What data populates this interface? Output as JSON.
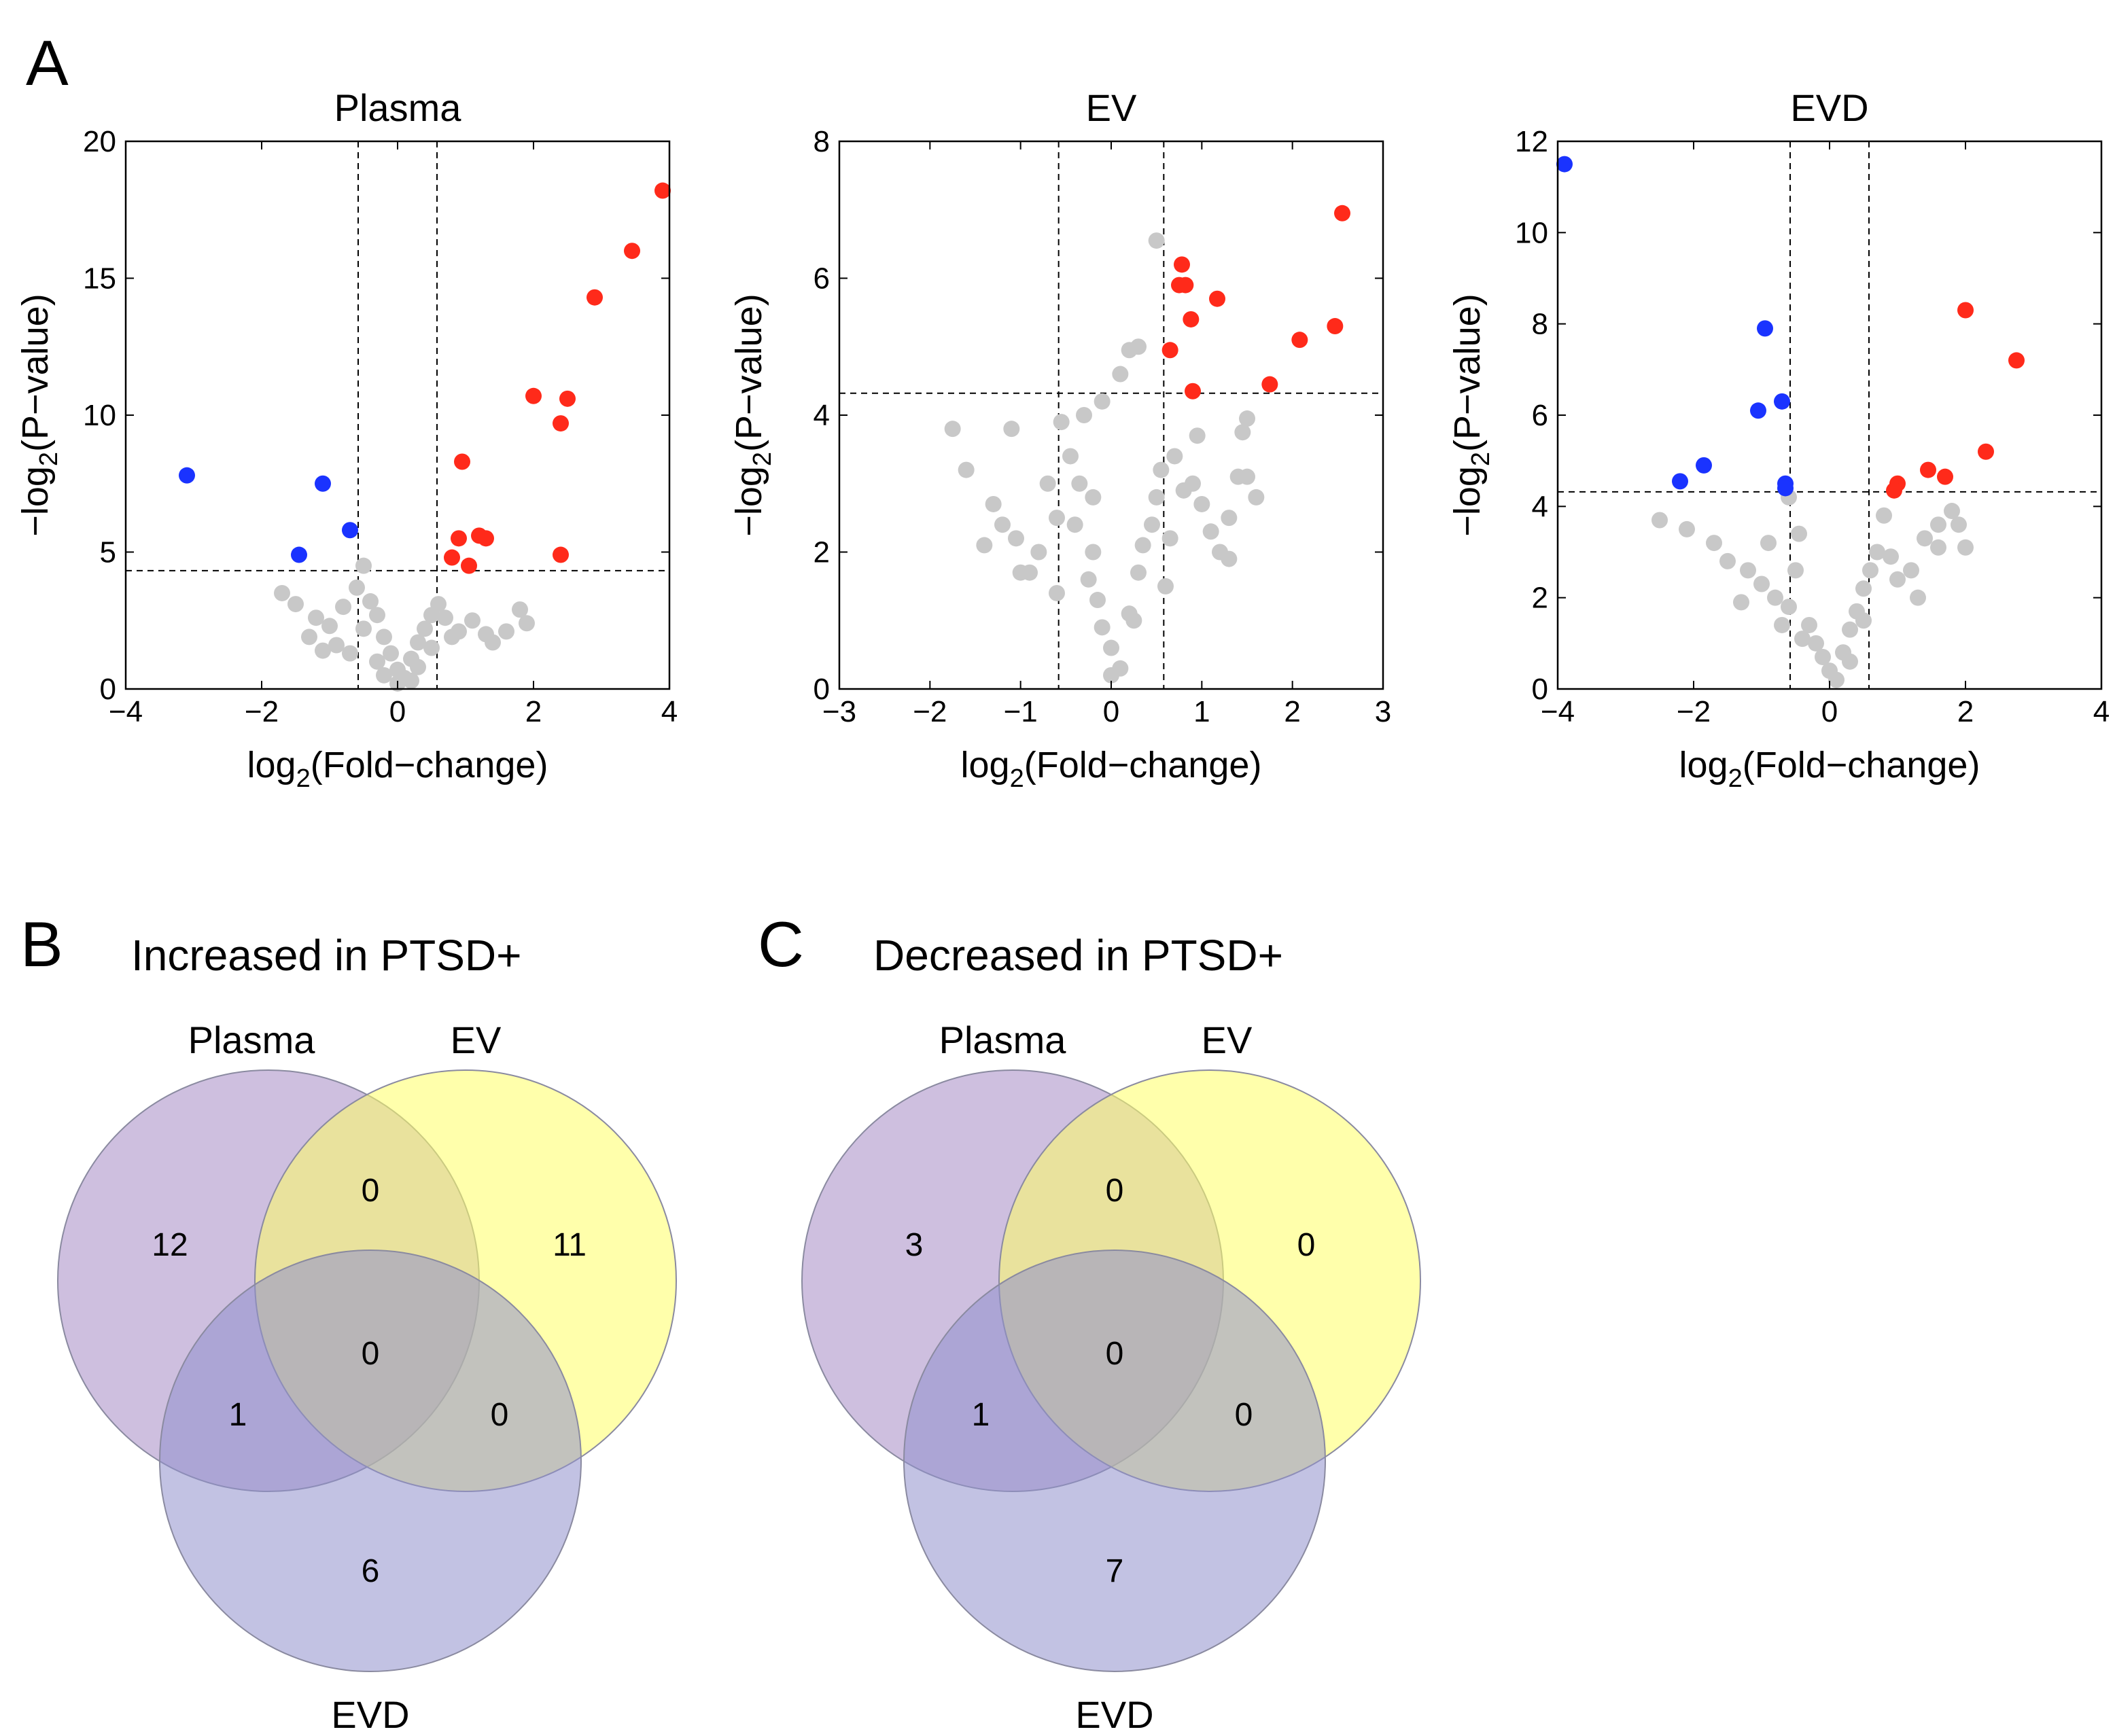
{
  "colors": {
    "up": "#ff2a1a",
    "down": "#1a33ff",
    "ns": "#c8c8c8",
    "plasma_set": "#a68bc4",
    "ev_set": "#ffff66",
    "evd_set": "#8f8fcc"
  },
  "labels": {
    "panel_a": "A",
    "panel_b": "B",
    "panel_c": "C",
    "xlabel_main": "log",
    "xlabel_sub": "2",
    "xlabel_tail": "(Fold−change)",
    "ylabel_main": "−log",
    "ylabel_sub": "2",
    "ylabel_tail": "(P−value)"
  },
  "chart_data": [
    {
      "type": "scatter",
      "title": "Plasma",
      "xlabel": "log2(Fold−change)",
      "ylabel": "−log2(P−value)",
      "xlim": [
        -4,
        4
      ],
      "ylim": [
        0,
        20
      ],
      "xticks": [
        -4,
        -2,
        0,
        2,
        4
      ],
      "yticks": [
        0,
        5,
        10,
        15,
        20
      ],
      "thresholds": {
        "x": [
          -0.58,
          0.58
        ],
        "y": 4.32
      },
      "up": [
        [
          3.9,
          18.2
        ],
        [
          3.45,
          16.0
        ],
        [
          2.9,
          14.3
        ],
        [
          2.0,
          10.7
        ],
        [
          2.5,
          10.6
        ],
        [
          2.4,
          9.7
        ],
        [
          0.95,
          8.3
        ],
        [
          0.9,
          5.5
        ],
        [
          1.2,
          5.6
        ],
        [
          1.3,
          5.5
        ],
        [
          0.8,
          4.8
        ],
        [
          1.05,
          4.5
        ],
        [
          2.4,
          4.9
        ]
      ],
      "down": [
        [
          -3.1,
          7.8
        ],
        [
          -1.1,
          7.5
        ],
        [
          -0.7,
          5.8
        ],
        [
          -1.45,
          4.9
        ]
      ],
      "ns": [
        [
          -1.7,
          3.5
        ],
        [
          -1.5,
          3.1
        ],
        [
          -1.2,
          2.6
        ],
        [
          -1.0,
          2.3
        ],
        [
          -0.8,
          3.0
        ],
        [
          -0.5,
          4.5
        ],
        [
          -0.6,
          3.7
        ],
        [
          -0.4,
          3.2
        ],
        [
          -0.3,
          2.7
        ],
        [
          -0.5,
          2.2
        ],
        [
          -0.2,
          1.9
        ],
        [
          -0.1,
          1.3
        ],
        [
          0.0,
          0.7
        ],
        [
          0.1,
          0.4
        ],
        [
          0.0,
          0.2
        ],
        [
          0.2,
          1.1
        ],
        [
          0.3,
          1.7
        ],
        [
          0.4,
          2.2
        ],
        [
          0.5,
          2.7
        ],
        [
          0.6,
          3.1
        ],
        [
          0.7,
          2.6
        ],
        [
          0.9,
          2.1
        ],
        [
          1.1,
          2.5
        ],
        [
          1.3,
          2.0
        ],
        [
          1.4,
          1.7
        ],
        [
          1.6,
          2.1
        ],
        [
          1.8,
          2.9
        ],
        [
          1.9,
          2.4
        ],
        [
          -0.9,
          1.6
        ],
        [
          -1.3,
          1.9
        ],
        [
          -0.3,
          1.0
        ],
        [
          0.3,
          0.8
        ],
        [
          -0.2,
          0.5
        ],
        [
          0.5,
          1.5
        ],
        [
          -0.7,
          1.3
        ],
        [
          0.8,
          1.9
        ],
        [
          -1.1,
          1.4
        ],
        [
          0.2,
          0.3
        ]
      ]
    },
    {
      "type": "scatter",
      "title": "EV",
      "xlabel": "log2(Fold−change)",
      "ylabel": "−log2(P−value)",
      "xlim": [
        -3,
        3
      ],
      "ylim": [
        0,
        8
      ],
      "xticks": [
        -3,
        -2,
        -1,
        0,
        1,
        2,
        3
      ],
      "yticks": [
        0,
        2,
        4,
        6,
        8
      ],
      "thresholds": {
        "x": [
          -0.58,
          0.58
        ],
        "y": 4.32
      },
      "up": [
        [
          2.55,
          6.95
        ],
        [
          0.78,
          6.2
        ],
        [
          0.75,
          5.9
        ],
        [
          0.82,
          5.9
        ],
        [
          1.17,
          5.7
        ],
        [
          0.88,
          5.4
        ],
        [
          2.47,
          5.3
        ],
        [
          2.08,
          5.1
        ],
        [
          0.65,
          4.95
        ],
        [
          1.75,
          4.45
        ],
        [
          0.9,
          4.35
        ]
      ],
      "down": [],
      "ns": [
        [
          0.5,
          6.55
        ],
        [
          0.3,
          5.0
        ],
        [
          0.1,
          4.6
        ],
        [
          -0.1,
          4.2
        ],
        [
          -0.3,
          4.0
        ],
        [
          -0.55,
          3.9
        ],
        [
          -1.75,
          3.8
        ],
        [
          -1.1,
          3.8
        ],
        [
          -1.6,
          3.2
        ],
        [
          -1.3,
          2.7
        ],
        [
          -1.2,
          2.4
        ],
        [
          -1.05,
          2.2
        ],
        [
          -0.8,
          2.0
        ],
        [
          -0.6,
          2.5
        ],
        [
          -0.7,
          3.0
        ],
        [
          -0.9,
          1.7
        ],
        [
          -0.4,
          2.4
        ],
        [
          -0.35,
          3.0
        ],
        [
          -0.45,
          3.4
        ],
        [
          -0.2,
          2.0
        ],
        [
          -0.25,
          1.6
        ],
        [
          -0.15,
          1.3
        ],
        [
          -0.1,
          0.9
        ],
        [
          0.0,
          0.6
        ],
        [
          0.1,
          0.3
        ],
        [
          0.0,
          0.2
        ],
        [
          0.2,
          1.1
        ],
        [
          0.3,
          1.7
        ],
        [
          0.35,
          2.1
        ],
        [
          0.5,
          2.8
        ],
        [
          0.55,
          3.2
        ],
        [
          0.7,
          3.4
        ],
        [
          0.8,
          2.9
        ],
        [
          0.9,
          3.0
        ],
        [
          1.0,
          2.7
        ],
        [
          1.1,
          2.3
        ],
        [
          1.2,
          2.0
        ],
        [
          1.3,
          2.5
        ],
        [
          1.4,
          3.1
        ],
        [
          1.5,
          3.1
        ],
        [
          1.6,
          2.8
        ],
        [
          1.3,
          1.9
        ],
        [
          0.65,
          2.2
        ],
        [
          0.45,
          2.4
        ],
        [
          0.6,
          1.5
        ],
        [
          0.25,
          1.0
        ],
        [
          -0.6,
          1.4
        ],
        [
          -1.0,
          1.7
        ],
        [
          -1.4,
          2.1
        ],
        [
          1.45,
          3.75
        ],
        [
          1.5,
          3.95
        ],
        [
          0.95,
          3.7
        ],
        [
          0.2,
          4.95
        ],
        [
          -0.2,
          2.8
        ]
      ]
    },
    {
      "type": "scatter",
      "title": "EVD",
      "xlabel": "log2(Fold−change)",
      "ylabel": "−log2(P−value)",
      "xlim": [
        -4,
        4
      ],
      "ylim": [
        0,
        12
      ],
      "xticks": [
        -4,
        -2,
        0,
        2,
        4
      ],
      "yticks": [
        0,
        2,
        4,
        6,
        8,
        10,
        12
      ],
      "thresholds": {
        "x": [
          -0.58,
          0.58
        ],
        "y": 4.32
      },
      "up": [
        [
          2.0,
          8.3
        ],
        [
          2.75,
          7.2
        ],
        [
          2.3,
          5.2
        ],
        [
          1.45,
          4.8
        ],
        [
          1.7,
          4.65
        ],
        [
          1.0,
          4.5
        ],
        [
          0.95,
          4.35
        ]
      ],
      "down": [
        [
          -3.9,
          11.5
        ],
        [
          -0.95,
          7.9
        ],
        [
          -0.7,
          6.3
        ],
        [
          -1.05,
          6.1
        ],
        [
          -1.85,
          4.9
        ],
        [
          -2.2,
          4.55
        ],
        [
          -0.65,
          4.5
        ],
        [
          -0.65,
          4.4
        ]
      ],
      "ns": [
        [
          -2.1,
          3.5
        ],
        [
          -1.7,
          3.2
        ],
        [
          -1.5,
          2.8
        ],
        [
          -1.2,
          2.6
        ],
        [
          -1.0,
          2.3
        ],
        [
          -0.8,
          2.0
        ],
        [
          -0.6,
          1.8
        ],
        [
          -0.5,
          2.6
        ],
        [
          -0.45,
          3.4
        ],
        [
          -0.9,
          3.2
        ],
        [
          -0.3,
          1.4
        ],
        [
          -0.2,
          1.0
        ],
        [
          -0.1,
          0.7
        ],
        [
          0.0,
          0.4
        ],
        [
          0.1,
          0.2
        ],
        [
          0.2,
          0.8
        ],
        [
          0.3,
          1.3
        ],
        [
          0.4,
          1.7
        ],
        [
          0.5,
          2.2
        ],
        [
          0.6,
          2.6
        ],
        [
          0.7,
          3.0
        ],
        [
          0.9,
          2.9
        ],
        [
          1.0,
          2.4
        ],
        [
          1.2,
          2.6
        ],
        [
          1.4,
          3.3
        ],
        [
          1.6,
          3.1
        ],
        [
          1.8,
          3.9
        ],
        [
          1.9,
          3.6
        ],
        [
          2.0,
          3.1
        ],
        [
          1.3,
          2.0
        ],
        [
          0.5,
          1.5
        ],
        [
          -0.7,
          1.4
        ],
        [
          -1.3,
          1.9
        ],
        [
          -2.5,
          3.7
        ],
        [
          -0.6,
          4.2
        ],
        [
          0.8,
          3.8
        ],
        [
          -0.4,
          1.1
        ],
        [
          0.3,
          0.6
        ],
        [
          1.6,
          3.6
        ]
      ]
    }
  ],
  "venn": [
    {
      "title": "Increased in PTSD+",
      "sets": {
        "plasma": "Plasma",
        "ev": "EV",
        "evd": "EVD"
      },
      "counts": {
        "plasma_only": "12",
        "ev_only": "11",
        "evd_only": "6",
        "plasma_ev": "0",
        "plasma_evd": "1",
        "ev_evd": "0",
        "all": "0"
      }
    },
    {
      "title": "Decreased in PTSD+",
      "sets": {
        "plasma": "Plasma",
        "ev": "EV",
        "evd": "EVD"
      },
      "counts": {
        "plasma_only": "3",
        "ev_only": "0",
        "evd_only": "7",
        "plasma_ev": "0",
        "plasma_evd": "1",
        "ev_evd": "0",
        "all": "0"
      }
    }
  ]
}
